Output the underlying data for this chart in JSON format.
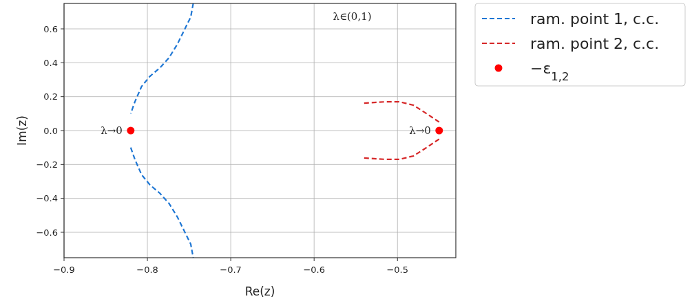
{
  "chart_data": {
    "type": "line",
    "xlabel": "Re(z)",
    "ylabel": "Im(z)",
    "xlim": [
      -0.9,
      -0.43
    ],
    "ylim": [
      -0.75,
      0.75
    ],
    "xticks": [
      {
        "value": -0.9,
        "label": "−0.9"
      },
      {
        "value": -0.8,
        "label": "−0.8"
      },
      {
        "value": -0.7,
        "label": "−0.7"
      },
      {
        "value": -0.6,
        "label": "−0.6"
      },
      {
        "value": -0.5,
        "label": "−0.5"
      }
    ],
    "yticks": [
      {
        "value": -0.6,
        "label": "−0.6"
      },
      {
        "value": -0.4,
        "label": "−0.4"
      },
      {
        "value": -0.2,
        "label": "−0.2"
      },
      {
        "value": 0,
        "label": "0.0"
      },
      {
        "value": 0.2,
        "label": "0.2"
      },
      {
        "value": 0.4,
        "label": "0.4"
      },
      {
        "value": 0.6,
        "label": "0.6"
      }
    ],
    "grid": true,
    "legend": "top right",
    "series": [
      {
        "name": "ram. point 1, c.c.",
        "color": "#1f77d4",
        "line_style": "dashed",
        "x": [
          -0.745,
          -0.748,
          -0.754,
          -0.764,
          -0.774,
          -0.785,
          -0.797,
          -0.807,
          -0.815,
          -0.82,
          null,
          -0.82,
          -0.815,
          -0.807,
          -0.797,
          -0.785,
          -0.774,
          -0.764,
          -0.754,
          -0.748,
          -0.745
        ],
        "values": [
          0.75,
          0.67,
          0.61,
          0.51,
          0.43,
          0.37,
          0.32,
          0.26,
          0.17,
          0.1,
          null,
          -0.1,
          -0.17,
          -0.26,
          -0.32,
          -0.37,
          -0.43,
          -0.51,
          -0.61,
          -0.67,
          -0.75
        ]
      },
      {
        "name": "ram. point 2, c.c.",
        "color": "#d62728",
        "line_style": "dashed",
        "x": [
          -0.54,
          -0.514,
          -0.498,
          -0.481,
          -0.465,
          -0.45,
          null,
          -0.45,
          -0.465,
          -0.481,
          -0.498,
          -0.514,
          -0.54
        ],
        "values": [
          0.162,
          0.17,
          0.17,
          0.15,
          0.1,
          0.05,
          null,
          -0.05,
          -0.1,
          -0.15,
          -0.17,
          -0.17,
          -0.162
        ]
      },
      {
        "name": "−ε$_{1,2}$",
        "type": "scatter",
        "color": "#ff0000",
        "marker": "circle",
        "x": [
          -0.82,
          -0.45
        ],
        "values": [
          0,
          0
        ]
      }
    ],
    "annotations": [
      {
        "text": "λ→0",
        "x": -0.82,
        "y": 0
      },
      {
        "text": "λ→0",
        "x": -0.45,
        "y": 0
      },
      "λ∈(0,1)"
    ]
  }
}
